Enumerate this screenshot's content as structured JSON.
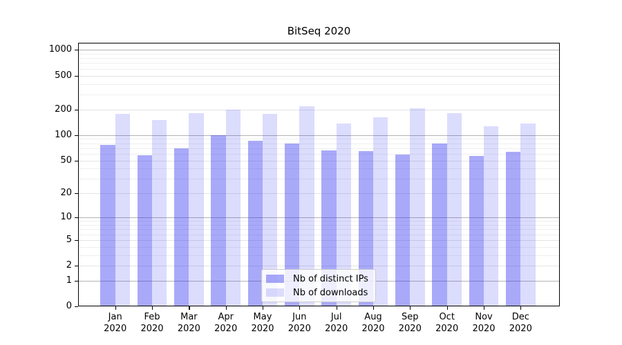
{
  "chart_data": {
    "type": "bar",
    "title": "BitSeq 2020",
    "y_scale": "log1p",
    "ylim": [
      0,
      1210
    ],
    "grid": true,
    "legend_position": "lower center",
    "y_ticks": [
      0,
      1,
      2,
      5,
      10,
      20,
      50,
      100,
      200,
      500,
      1000
    ],
    "grid_levels": {
      "major_values": [
        1,
        10,
        100,
        1000
      ],
      "medium_values": [
        2,
        5,
        20,
        50,
        200,
        500
      ],
      "minor_values": [
        3,
        4,
        6,
        7,
        8,
        9,
        30,
        40,
        60,
        70,
        80,
        90,
        300,
        400,
        600,
        700,
        800,
        900
      ],
      "major_color": "#b3b3b3",
      "medium_color": "#e4e4e4",
      "minor_color": "#efefef"
    },
    "categories": [
      "Jan",
      "Feb",
      "Mar",
      "Apr",
      "May",
      "Jun",
      "Jul",
      "Aug",
      "Sep",
      "Oct",
      "Nov",
      "Dec"
    ],
    "year_label": "2020",
    "series": [
      {
        "name": "Nb of distinct IPs",
        "color": "rgba(40,40,240,0.40)",
        "values": [
          76,
          58,
          70,
          100,
          85,
          80,
          66,
          65,
          59,
          80,
          57,
          64
        ]
      },
      {
        "name": "Nb of downloads",
        "color": "rgba(40,40,240,0.16)",
        "values": [
          177,
          150,
          180,
          200,
          178,
          220,
          136,
          162,
          207,
          181,
          126,
          137
        ]
      }
    ]
  }
}
